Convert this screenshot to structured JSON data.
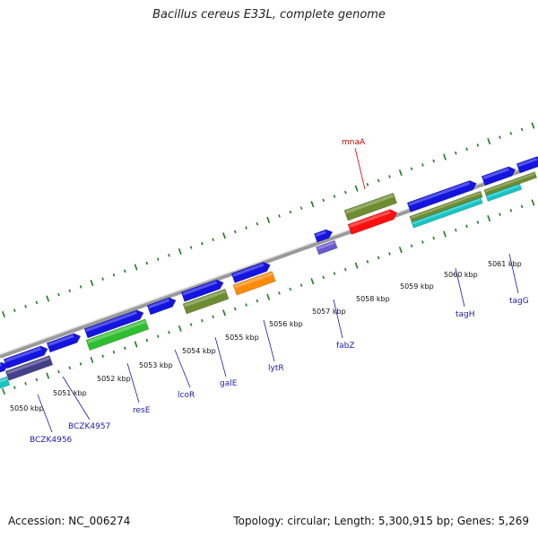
{
  "title": "Bacillus cereus E33L, complete genome",
  "footer": {
    "accession": "Accession: NC_006274",
    "topology": "Topology: circular; Length: 5,300,915 bp; Genes: 5,269"
  },
  "map": {
    "colors": {
      "backbone": "#8f8f8f",
      "ticks": "#1e7a1e",
      "cds_forward": "#1414e0",
      "cds_reverse": "#1414e0",
      "blue_label_line": "#1a1aa8",
      "red_label_line": "#cc0000"
    },
    "tick_labels": [
      "5050 kbp",
      "5051 kbp",
      "5052 kbp",
      "5053 kbp",
      "5054 kbp",
      "5055 kbp",
      "5056 kbp",
      "5057 kbp",
      "5058 kbp",
      "5059 kbp",
      "5060 kbp",
      "5061 kbp"
    ],
    "gene_labels": [
      "BCZK4956",
      "BCZK4957",
      "resE",
      "lcoR",
      "galE",
      "lytR",
      "fabZ",
      "tagH",
      "tagG",
      "mnaA"
    ]
  }
}
